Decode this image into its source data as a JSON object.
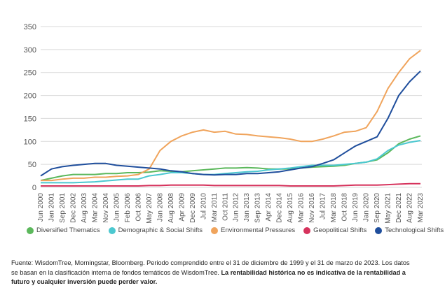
{
  "chart_data": {
    "type": "line",
    "title": "",
    "xlabel": "",
    "ylabel": "",
    "ylim": [
      0,
      350
    ],
    "yticks": [
      0,
      50,
      100,
      150,
      200,
      250,
      300,
      350
    ],
    "x": [
      "Jun 2000",
      "Jan 2001",
      "Sep 2001",
      "Dec 2002",
      "Aug 2003",
      "Mar 2004",
      "Nov 2004",
      "Jun 2005",
      "Feb 2006",
      "Oct 2006",
      "May 2007",
      "Jan 2008",
      "Aug 2008",
      "Apr 2009",
      "Dec 2009",
      "Jul 2010",
      "Mar 2011",
      "Oct 2011",
      "Jun 2012",
      "Jan 2013",
      "Sep 2013",
      "Apr 2014",
      "Dec 2014",
      "Aug 2015",
      "Mar 2016",
      "Nov 2016",
      "Jul 2017",
      "Mar 2018",
      "Oct 2018",
      "Jun 2019",
      "Jan 2020",
      "Sep 2020",
      "May 2021",
      "Dec 2021",
      "Aug 2022",
      "Mar 2023"
    ],
    "grid": true,
    "series": [
      {
        "name": "Diversified Thematics",
        "color": "#5cb85c",
        "values": [
          15,
          20,
          25,
          28,
          28,
          28,
          30,
          30,
          32,
          32,
          33,
          36,
          35,
          34,
          36,
          38,
          40,
          42,
          42,
          43,
          42,
          40,
          40,
          40,
          42,
          44,
          45,
          46,
          48,
          52,
          55,
          60,
          75,
          95,
          105,
          112
        ]
      },
      {
        "name": "Demographic & Social Shifts",
        "color": "#4cc8d0",
        "values": [
          10,
          10,
          10,
          10,
          11,
          12,
          14,
          16,
          18,
          18,
          25,
          28,
          32,
          32,
          30,
          28,
          28,
          30,
          32,
          34,
          35,
          38,
          40,
          42,
          45,
          48,
          48,
          48,
          50,
          52,
          55,
          62,
          80,
          92,
          98,
          102
        ]
      },
      {
        "name": "Environmental Pressures",
        "color": "#f0a45c",
        "values": [
          15,
          15,
          18,
          20,
          20,
          22,
          22,
          24,
          25,
          28,
          40,
          80,
          100,
          112,
          120,
          125,
          120,
          122,
          116,
          115,
          112,
          110,
          108,
          105,
          100,
          100,
          105,
          112,
          120,
          122,
          130,
          165,
          215,
          250,
          280,
          298
        ]
      },
      {
        "name": "Geopolitical Shifts",
        "color": "#d6335d",
        "values": [
          3,
          3,
          3,
          3,
          3,
          3,
          3,
          3,
          3,
          3,
          4,
          4,
          5,
          5,
          5,
          5,
          4,
          4,
          4,
          4,
          4,
          4,
          4,
          3,
          3,
          3,
          3,
          3,
          4,
          5,
          5,
          5,
          6,
          7,
          8,
          8
        ]
      },
      {
        "name": "Technological Shifts",
        "color": "#1f4e9c",
        "values": [
          25,
          40,
          45,
          48,
          50,
          52,
          52,
          48,
          46,
          44,
          42,
          40,
          36,
          34,
          30,
          28,
          27,
          28,
          28,
          30,
          30,
          32,
          34,
          38,
          42,
          45,
          52,
          60,
          75,
          90,
          100,
          110,
          150,
          200,
          230,
          253
        ]
      }
    ]
  },
  "footnote": {
    "line1": "Fuente: WisdomTree, Morningstar, Bloomberg. Periodo comprendido entre el 31 de diciembre de 1999 y el 31 de marzo de 2023. Los datos",
    "line2": "se basan en la clasificación interna de fondos temáticos de WisdomTree. ",
    "line2_bold": "La rentabilidad histórica no es indicativa de la rentabilidad a",
    "line3_bold": "futuro y cualquier inversión puede perder valor."
  }
}
